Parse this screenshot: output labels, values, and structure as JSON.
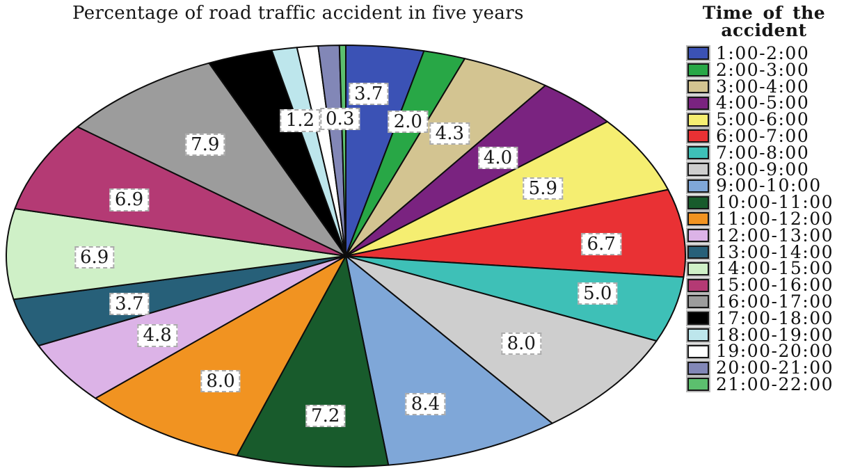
{
  "chart_data": {
    "type": "pie",
    "title": "Percentage of road traffic accident in five years",
    "legend_title": "Time of the accident",
    "legend_position": "right",
    "unit": "percent",
    "start_angle": "12 o'clock, clockwise",
    "grid": "off",
    "slices": [
      {
        "label": "1:00-2:00",
        "value": 3.7,
        "pct_label": "3.7",
        "color": "#3b52b5"
      },
      {
        "label": "2:00-3:00",
        "value": 2.0,
        "pct_label": "2.0",
        "color": "#28a746"
      },
      {
        "label": "3:00-4:00",
        "value": 4.3,
        "pct_label": "4.3",
        "color": "#d3c491"
      },
      {
        "label": "4:00-5:00",
        "value": 4.0,
        "pct_label": "4.0",
        "color": "#7a2380"
      },
      {
        "label": "5:00-6:00",
        "value": 5.9,
        "pct_label": "5.9",
        "color": "#f5ee71"
      },
      {
        "label": "6:00-7:00",
        "value": 6.7,
        "pct_label": "6.7",
        "color": "#e93134"
      },
      {
        "label": "7:00-8:00",
        "value": 5.0,
        "pct_label": "5.0",
        "color": "#3ec0b7"
      },
      {
        "label": "8:00-9:00",
        "value": 8.0,
        "pct_label": "8.0",
        "color": "#cecece"
      },
      {
        "label": "9:00-10:00",
        "value": 8.4,
        "pct_label": "8.4",
        "color": "#7fa7d8"
      },
      {
        "label": "10:00-11:00",
        "value": 7.2,
        "pct_label": "7.2",
        "color": "#185b2c"
      },
      {
        "label": "11:00-12:00",
        "value": 8.0,
        "pct_label": "8.0",
        "color": "#f19321"
      },
      {
        "label": "12:00-13:00",
        "value": 4.8,
        "pct_label": "4.8",
        "color": "#dcb3e7"
      },
      {
        "label": "13:00-14:00",
        "value": 3.7,
        "pct_label": "3.7",
        "color": "#276079"
      },
      {
        "label": "14:00-15:00",
        "value": 6.9,
        "pct_label": "6.9",
        "color": "#cff0c7"
      },
      {
        "label": "15:00-16:00",
        "value": 6.9,
        "pct_label": "6.9",
        "color": "#b43a74"
      },
      {
        "label": "16:00-17:00",
        "value": 7.9,
        "pct_label": "7.9",
        "color": "#9c9c9c"
      },
      {
        "label": "17:00-18:00",
        "value": 3.1,
        "pct_label": "",
        "color": "#000000"
      },
      {
        "label": "18:00-19:00",
        "value": 1.2,
        "pct_label": "1.2",
        "color": "#bde6ec"
      },
      {
        "label": "19:00-20:00",
        "value": 1.0,
        "pct_label": "",
        "color": "#ffffff"
      },
      {
        "label": "20:00-21:00",
        "value": 1.0,
        "pct_label": "",
        "color": "#8287b7"
      },
      {
        "label": "21:00-22:00",
        "value": 0.3,
        "pct_label": "0.3",
        "color": "#5cbf6e"
      }
    ]
  }
}
